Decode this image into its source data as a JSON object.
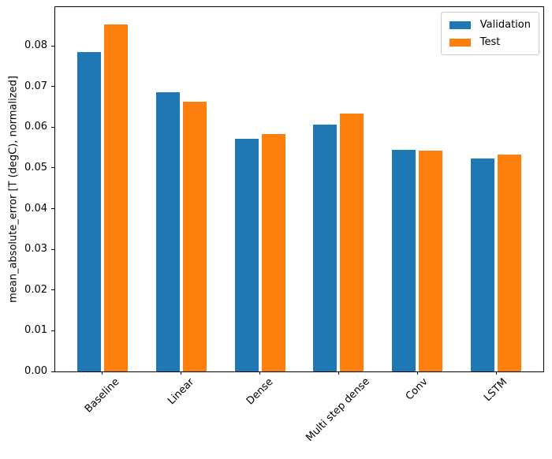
{
  "figure": {
    "background": "#ffffff",
    "spine_color": "#000000",
    "legend_border_color": "#cccccc"
  },
  "chart_data": {
    "type": "bar",
    "title": "",
    "xlabel": "",
    "ylabel": "mean_absolute_error [T (degC), normalized]",
    "categories": [
      "Baseline",
      "Linear",
      "Dense",
      "Multi step dense",
      "Conv",
      "LSTM"
    ],
    "series": [
      {
        "name": "Validation",
        "color": "#1f77b4",
        "values": [
          0.0784,
          0.0686,
          0.0572,
          0.0606,
          0.0545,
          0.0524
        ]
      },
      {
        "name": "Test",
        "color": "#ff7f0e",
        "values": [
          0.0852,
          0.0663,
          0.0583,
          0.0634,
          0.0543,
          0.0533
        ]
      }
    ],
    "ylim": [
      0,
      0.0895
    ],
    "xlim": [
      -0.6,
      5.6
    ],
    "yticks": [
      0.0,
      0.01,
      0.02,
      0.03,
      0.04,
      0.05,
      0.06,
      0.07,
      0.08
    ],
    "ytick_labels": [
      "0.00",
      "0.01",
      "0.02",
      "0.03",
      "0.04",
      "0.05",
      "0.06",
      "0.07",
      "0.08"
    ],
    "xtick_rotation_deg": 45,
    "bar_width_units": 0.3,
    "bar_offset_units": 0.17,
    "grid": false,
    "legend": {
      "position": "upper-right",
      "entries": [
        "Validation",
        "Test"
      ]
    }
  }
}
